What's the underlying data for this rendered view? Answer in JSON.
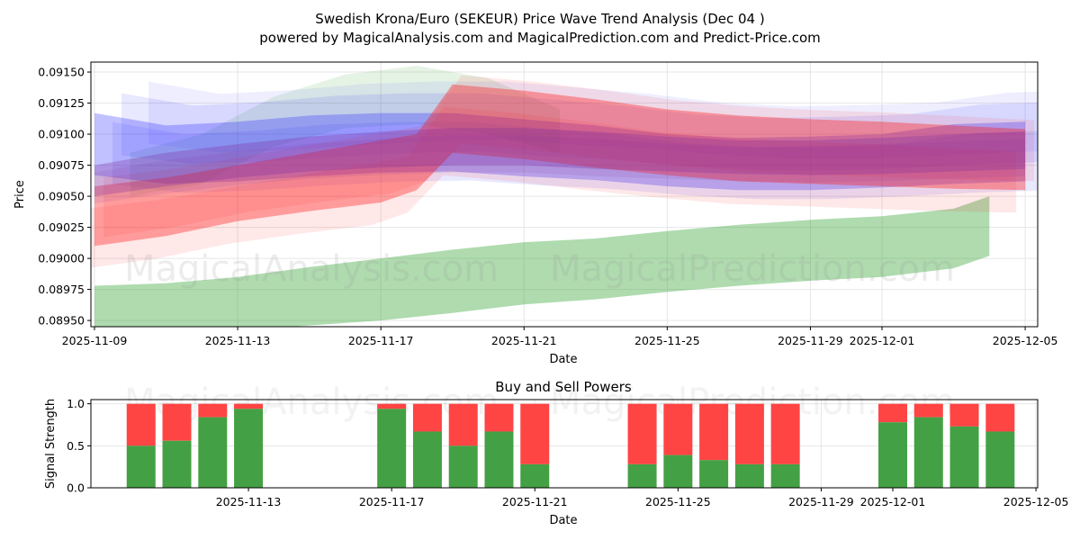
{
  "chart_data": [
    {
      "type": "area",
      "title": "Swedish Krona/Euro (SEKEUR) Price Wave Trend Analysis (Dec 04 )",
      "subtitle": "powered by MagicalAnalysis.com and MagicalPrediction.com and Predict-Price.com",
      "xlabel": "Date",
      "ylabel": "Price",
      "xlim": [
        "2025-11-09",
        "2025-12-05"
      ],
      "ylim": [
        0.08945,
        0.09158
      ],
      "x_ticks": [
        "2025-11-09",
        "2025-11-13",
        "2025-11-17",
        "2025-11-21",
        "2025-11-25",
        "2025-11-29",
        "2025-12-01",
        "2025-12-05"
      ],
      "y_ticks": [
        "0.08950",
        "0.08975",
        "0.09000",
        "0.09025",
        "0.09050",
        "0.09075",
        "0.09100",
        "0.09125",
        "0.09150"
      ],
      "watermarks": [
        "MagicalAnalysis.com",
        "MagicalPrediction.com"
      ],
      "series": [
        {
          "name": "green-forecast-band",
          "color": "#2ca02c",
          "x": [
            "2025-11-09",
            "2025-11-11",
            "2025-11-13",
            "2025-11-15",
            "2025-11-17",
            "2025-11-19",
            "2025-11-21",
            "2025-11-23",
            "2025-11-25",
            "2025-11-27",
            "2025-11-29",
            "2025-12-01",
            "2025-12-03",
            "2025-12-04"
          ],
          "upper": [
            0.08978,
            0.0898,
            0.08985,
            0.08993,
            0.09,
            0.09007,
            0.09013,
            0.09016,
            0.09022,
            0.09027,
            0.09031,
            0.09034,
            0.0904,
            0.0905
          ],
          "lower": [
            0.08938,
            0.0894,
            0.08942,
            0.08946,
            0.0895,
            0.08956,
            0.08963,
            0.08967,
            0.08973,
            0.08978,
            0.08982,
            0.08985,
            0.08992,
            0.09002
          ]
        },
        {
          "name": "red-band",
          "color": "#ff2020",
          "x": [
            "2025-11-09",
            "2025-11-11",
            "2025-11-13",
            "2025-11-15",
            "2025-11-17",
            "2025-11-18",
            "2025-11-19",
            "2025-11-21",
            "2025-11-23",
            "2025-11-25",
            "2025-11-27",
            "2025-11-29",
            "2025-12-01",
            "2025-12-03",
            "2025-12-05"
          ],
          "upper": [
            0.09058,
            0.09065,
            0.09075,
            0.09085,
            0.09095,
            0.091,
            0.0914,
            0.09135,
            0.09128,
            0.0912,
            0.09115,
            0.09112,
            0.0911,
            0.09107,
            0.09104
          ],
          "lower": [
            0.0901,
            0.09018,
            0.0903,
            0.09038,
            0.09045,
            0.09055,
            0.09085,
            0.0908,
            0.09073,
            0.09067,
            0.09062,
            0.0906,
            0.09058,
            0.09056,
            0.09055
          ]
        },
        {
          "name": "blue-band",
          "color": "#2020ff",
          "x": [
            "2025-11-09",
            "2025-11-11",
            "2025-11-13",
            "2025-11-15",
            "2025-11-17",
            "2025-11-19",
            "2025-11-21",
            "2025-11-23",
            "2025-11-25",
            "2025-11-27",
            "2025-11-29",
            "2025-12-01",
            "2025-12-03",
            "2025-12-05"
          ],
          "upper": [
            0.09117,
            0.09107,
            0.0911,
            0.09115,
            0.09117,
            0.09117,
            0.09112,
            0.09107,
            0.091,
            0.09097,
            0.09098,
            0.091,
            0.09108,
            0.0911
          ],
          "lower": [
            0.09067,
            0.0906,
            0.09062,
            0.09066,
            0.09069,
            0.0907,
            0.09066,
            0.09063,
            0.09058,
            0.09055,
            0.09055,
            0.09057,
            0.0906,
            0.09062
          ]
        },
        {
          "name": "purple-band",
          "color": "#8030a0",
          "x": [
            "2025-11-09",
            "2025-11-11",
            "2025-11-13",
            "2025-11-15",
            "2025-11-17",
            "2025-11-19",
            "2025-11-21",
            "2025-11-23",
            "2025-11-25",
            "2025-11-27",
            "2025-11-29",
            "2025-12-01",
            "2025-12-03",
            "2025-12-05"
          ],
          "upper": [
            0.09075,
            0.09085,
            0.09092,
            0.09098,
            0.09102,
            0.09105,
            0.09105,
            0.09102,
            0.09098,
            0.09095,
            0.09095,
            0.09097,
            0.091,
            0.09102
          ],
          "lower": [
            0.0905,
            0.09058,
            0.09065,
            0.0907,
            0.09073,
            0.09075,
            0.09075,
            0.09072,
            0.0907,
            0.09068,
            0.09067,
            0.09068,
            0.0907,
            0.09072
          ]
        }
      ]
    },
    {
      "type": "bar",
      "title": "Buy and Sell Powers",
      "xlabel": "Date",
      "ylabel": "Signal Strength",
      "ylim": [
        0,
        1.05
      ],
      "y_ticks": [
        "0.0",
        "0.5",
        "1.0"
      ],
      "x_ticks": [
        "2025-11-13",
        "2025-11-17",
        "2025-11-21",
        "2025-11-25",
        "2025-11-29",
        "2025-12-01",
        "2025-12-05"
      ],
      "dates": [
        "2025-11-10",
        "2025-11-11",
        "2025-11-12",
        "2025-11-13",
        "2025-11-17",
        "2025-11-18",
        "2025-11-19",
        "2025-11-20",
        "2025-11-21",
        "2025-11-24",
        "2025-11-25",
        "2025-11-26",
        "2025-11-27",
        "2025-11-28",
        "2025-12-01",
        "2025-12-02",
        "2025-12-03",
        "2025-12-04"
      ],
      "buy": [
        0.5,
        0.56,
        0.84,
        0.94,
        0.94,
        0.67,
        0.5,
        0.67,
        0.28,
        0.28,
        0.39,
        0.33,
        0.28,
        0.28,
        0.78,
        0.84,
        0.73,
        0.67
      ],
      "sell_color": "#ff4444",
      "buy_color": "#44a044"
    }
  ]
}
